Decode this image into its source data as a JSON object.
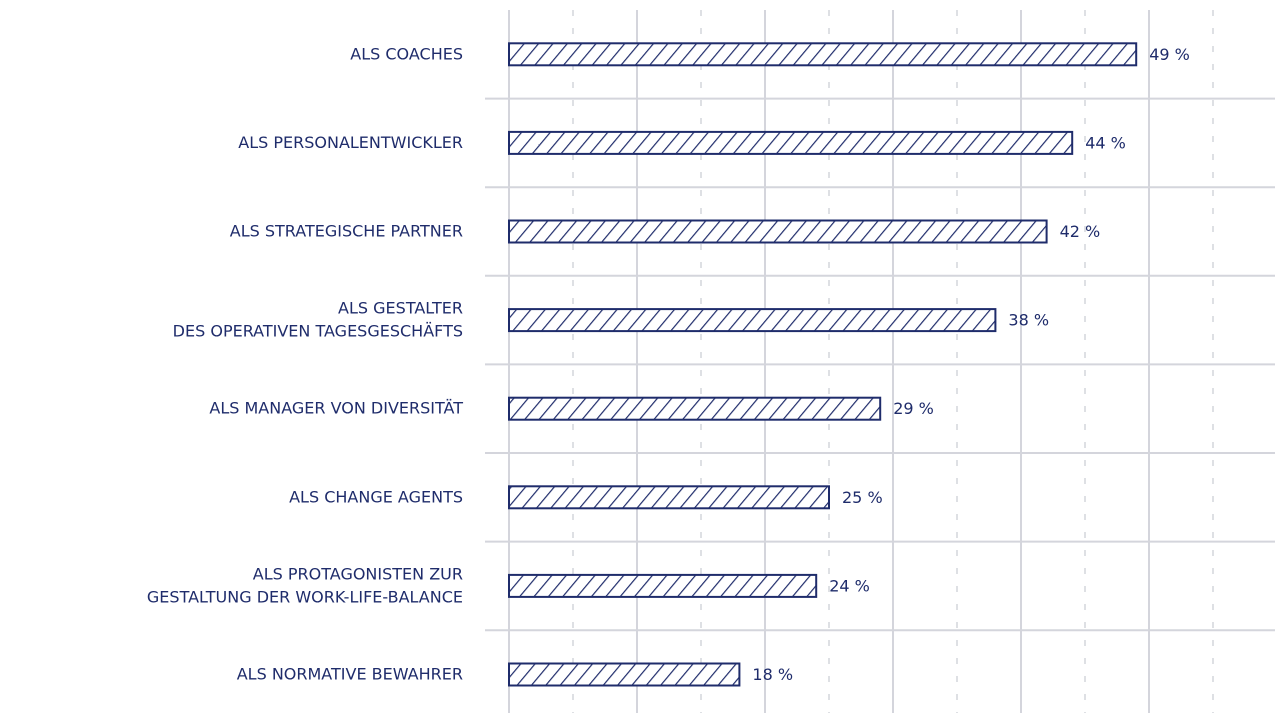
{
  "chart_data": {
    "type": "hbar",
    "categories": [
      "ALS COACHES",
      "ALS PERSONALENTWICKLER",
      "ALS STRATEGISCHE PARTNER",
      "ALS GESTALTER\nDES OPERATIVEN TAGESGESCHÄFTS",
      "ALS MANAGER VON DIVERSITÄT",
      "ALS CHANGE AGENTS",
      "ALS PROTAGONISTEN ZUR\nGESTALTUNG DER WORK-LIFE-BALANCE",
      "ALS NORMATIVE BEWAHRER"
    ],
    "values": [
      49,
      44,
      42,
      38,
      29,
      25,
      24,
      18
    ],
    "value_labels": [
      "49 %",
      "44 %",
      "42 %",
      "38 %",
      "29 %",
      "25 %",
      "24 %",
      "18 %"
    ],
    "color": "#1f2c6b",
    "xlim": [
      0,
      55
    ],
    "xticks": [
      0,
      10,
      20,
      30,
      40,
      50
    ],
    "minor_xticks": [
      5,
      15,
      25,
      35,
      45,
      55
    ],
    "grid": true
  }
}
